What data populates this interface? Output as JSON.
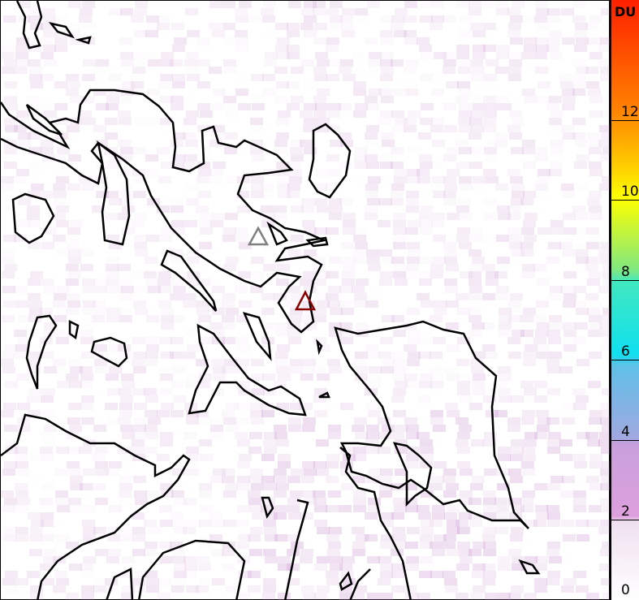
{
  "colorbar": {
    "unit": "DU",
    "ticks": [
      "0",
      "2",
      "4",
      "6",
      "8",
      "10",
      "12"
    ],
    "min": 0,
    "max": 15,
    "colors": [
      "#ffffff",
      "#dda0dd",
      "#a0a8e0",
      "#10e0f0",
      "#80e880",
      "#ffff00",
      "#ff8000",
      "#ff2000"
    ]
  },
  "markers": [
    {
      "name": "volcano-gray",
      "color": "#808080"
    },
    {
      "name": "volcano-red",
      "color": "#8b0000"
    }
  ],
  "background_signal_color": "#c080c8",
  "coastline_color": "#000000"
}
